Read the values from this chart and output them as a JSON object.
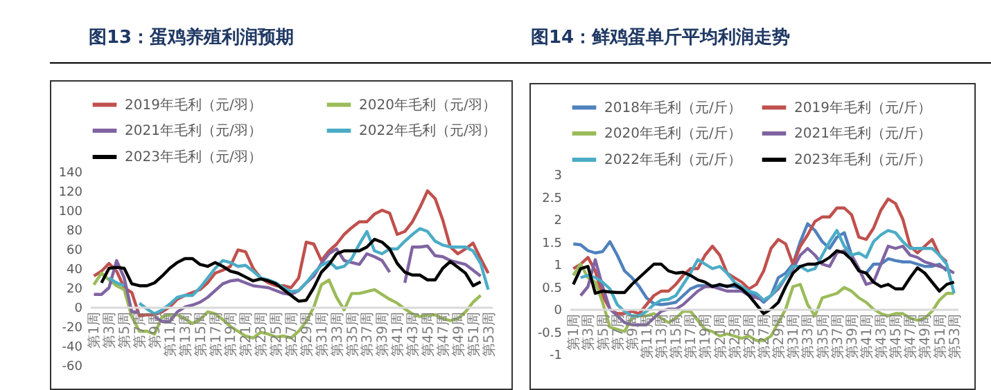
{
  "chart_data": [
    {
      "type": "line",
      "title": "图13：蛋鸡养殖利润预期",
      "legend": "top",
      "categories": [
        "第1周",
        null,
        "第3周",
        null,
        "第5周",
        null,
        "第7周",
        null,
        "第9周",
        null,
        "第11周",
        null,
        "第13周",
        null,
        "第15周",
        null,
        "第17周",
        null,
        "第19周",
        null,
        "第21周",
        null,
        "第23周",
        null,
        "第25周",
        null,
        "第27周",
        null,
        "第29周",
        null,
        "第31周",
        null,
        "第33周",
        null,
        "第35周",
        null,
        "第37周",
        null,
        "第39周",
        null,
        "第41周",
        null,
        "第43周",
        null,
        "第45周",
        null,
        "第47周",
        null,
        "第49周",
        null,
        "第51周",
        null,
        "第53周"
      ],
      "ylim": [
        -60,
        140
      ],
      "yticks": [
        -60,
        -40,
        -20,
        0,
        20,
        40,
        60,
        80,
        100,
        120,
        140
      ],
      "series": [
        {
          "name": "2019年毛利（元/羽）",
          "color": "#c0504d",
          "values": [
            32,
            37,
            45,
            37,
            20,
            15,
            -9,
            -8,
            -8,
            -5,
            0,
            8,
            12,
            15,
            18,
            25,
            35,
            38,
            42,
            59,
            57,
            40,
            30,
            25,
            22,
            22,
            20,
            30,
            67,
            65,
            48,
            58,
            65,
            75,
            82,
            88,
            88,
            96,
            100,
            97,
            75,
            78,
            88,
            103,
            120,
            112,
            90,
            62,
            55,
            60,
            66,
            50,
            35
          ]
        },
        {
          "name": "2020年毛利（元/羽）",
          "color": "#9bbb59",
          "values": [
            23,
            35,
            28,
            22,
            18,
            -10,
            -25,
            -25,
            -28,
            -10,
            -8,
            -8,
            -12,
            -17,
            -13,
            -5,
            -7,
            -13,
            -20,
            -25,
            -30,
            -32,
            -26,
            -28,
            -31,
            -30,
            -32,
            -25,
            -15,
            0,
            23,
            28,
            10,
            -3,
            14,
            14,
            16,
            18,
            13,
            8,
            4,
            -2,
            -7,
            -10,
            -8,
            -8,
            -12,
            -14,
            -12,
            -5,
            5,
            12,
            null
          ]
        },
        {
          "name": "2021年毛利（元/羽）",
          "color": "#8064a2",
          "values": [
            13,
            13,
            20,
            48,
            30,
            -5,
            -5,
            null,
            -10,
            -15,
            -15,
            -5,
            0,
            2,
            5,
            10,
            17,
            24,
            27,
            28,
            25,
            22,
            21,
            20,
            17,
            14,
            13,
            17,
            25,
            32,
            45,
            55,
            60,
            48,
            46,
            44,
            55,
            52,
            48,
            36,
            null,
            25,
            62,
            62,
            63,
            53,
            52,
            48,
            46,
            44,
            38,
            32,
            null
          ]
        },
        {
          "name": "2022年毛利（元/羽）",
          "color": "#4bacc6",
          "values": [
            null,
            null,
            30,
            25,
            22,
            null,
            4,
            -2,
            -7,
            -3,
            3,
            10,
            12,
            12,
            20,
            30,
            40,
            48,
            46,
            42,
            43,
            37,
            30,
            28,
            25,
            20,
            16,
            17,
            25,
            35,
            43,
            47,
            40,
            42,
            50,
            65,
            78,
            58,
            55,
            60,
            60,
            68,
            75,
            81,
            78,
            68,
            64,
            62,
            62,
            62,
            58,
            45,
            18
          ]
        },
        {
          "name": "2023年毛利（元/羽）",
          "color": "#000000",
          "values": [
            null,
            25,
            40,
            41,
            40,
            24,
            22,
            22,
            25,
            32,
            40,
            46,
            50,
            50,
            44,
            42,
            46,
            42,
            37,
            35,
            31,
            27,
            29,
            27,
            24,
            18,
            12,
            6,
            7,
            20,
            36,
            44,
            55,
            58,
            58,
            58,
            62,
            70,
            67,
            60,
            45,
            36,
            33,
            33,
            28,
            28,
            40,
            47,
            41,
            35,
            22,
            26,
            null
          ]
        }
      ]
    },
    {
      "type": "line",
      "title": "图14：鲜鸡蛋单斤平均利润走势",
      "legend": "top",
      "categories": [
        "第1周",
        null,
        "第3周",
        null,
        "第5周",
        null,
        "第7周",
        null,
        "第9周",
        null,
        "第11周",
        null,
        "第13周",
        null,
        "第15周",
        null,
        "第17周",
        null,
        "第19周",
        null,
        "第21周",
        null,
        "第23周",
        null,
        "第25周",
        null,
        "第27周",
        null,
        "第29周",
        null,
        "第31周",
        null,
        "第33周",
        null,
        "第35周",
        null,
        "第37周",
        null,
        "第39周",
        null,
        "第41周",
        null,
        "第43周",
        null,
        "第45周",
        null,
        "第47周",
        null,
        "第49周",
        null,
        "第51周",
        null,
        "第53周"
      ],
      "ylim": [
        -1,
        3
      ],
      "yticks": [
        -1,
        -0.5,
        0,
        0.5,
        1,
        1.5,
        2,
        2.5,
        3
      ],
      "series": [
        {
          "name": "2018年毛利（元/斤）",
          "color": "#4f81bd",
          "values": [
            1.45,
            1.43,
            1.3,
            1.25,
            1.28,
            1.5,
            1.2,
            0.85,
            0.7,
            0.5,
            0.25,
            0.12,
            0.1,
            0.12,
            0.15,
            0.3,
            0.45,
            0.52,
            0.52,
            0.52,
            0.52,
            0.52,
            0.5,
            0.45,
            0.35,
            0.3,
            0.15,
            0.3,
            0.7,
            0.8,
            1.0,
            1.5,
            1.9,
            1.75,
            1.5,
            1.35,
            1.6,
            1.7,
            1.2,
            0.85,
            0.8,
            1.0,
            1.0,
            1.12,
            1.08,
            1.05,
            1.05,
            1.0,
            0.95,
            0.95,
            1.0,
            0.85,
            null
          ]
        },
        {
          "name": "2019年毛利（元/斤）",
          "color": "#c0504d",
          "values": [
            0.9,
            1.0,
            1.15,
            0.85,
            0.3,
            0,
            -0.1,
            -0.1,
            -0.05,
            -0.1,
            0.1,
            0.3,
            0.4,
            0.4,
            0.55,
            0.75,
            0.9,
            0.9,
            1.2,
            1.4,
            1.2,
            0.8,
            0.7,
            0.6,
            0.45,
            0.55,
            0.85,
            1.35,
            1.55,
            1.45,
            1.0,
            1.4,
            1.65,
            1.95,
            2.05,
            2.05,
            2.25,
            2.25,
            2.1,
            1.6,
            1.55,
            1.8,
            2.2,
            2.45,
            2.35,
            2.0,
            1.4,
            1.25,
            1.4,
            1.55,
            1.2,
            1.05,
            null
          ]
        },
        {
          "name": "2020年毛利（元/斤）",
          "color": "#9bbb59",
          "values": [
            0.75,
            1.0,
            0.7,
            0.6,
            0.15,
            -0.4,
            -0.45,
            -0.5,
            -0.2,
            -0.15,
            -0.15,
            -0.1,
            -0.2,
            -0.3,
            -0.2,
            -0.05,
            -0.05,
            -0.25,
            -0.45,
            -0.5,
            -0.6,
            -0.55,
            -0.6,
            -0.65,
            -0.6,
            -0.7,
            -0.7,
            -0.6,
            -0.3,
            0,
            0.5,
            0.55,
            0.1,
            -0.15,
            0.25,
            0.3,
            0.35,
            0.48,
            0.4,
            0.25,
            0.15,
            0,
            -0.1,
            -0.15,
            -0.1,
            -0.1,
            -0.2,
            -0.25,
            -0.2,
            -0.05,
            0.2,
            0.35,
            0.35
          ]
        },
        {
          "name": "2021年毛利（元/斤）",
          "color": "#8064a2",
          "values": [
            null,
            0.3,
            0.5,
            1.1,
            0.5,
            0,
            -0.15,
            -0.3,
            -0.35,
            -0.35,
            -0.35,
            -0.2,
            -0.05,
            0,
            0,
            0.1,
            0.25,
            0.4,
            0.5,
            0.5,
            0.45,
            0.4,
            0.4,
            0.4,
            0.3,
            0.25,
            0.2,
            0.3,
            0.45,
            0.7,
            0.9,
            1.2,
            1.35,
            1.2,
            1.0,
            0.95,
            1.25,
            1.3,
            1.2,
            0.9,
            0.55,
            0.6,
            1.0,
            1.4,
            1.35,
            1.4,
            1.2,
            1.15,
            1.05,
            1.0,
            0.95,
            0.9,
            0.8
          ]
        },
        {
          "name": "2022年毛利（元/斤）",
          "color": "#4bacc6",
          "values": [
            null,
            0.7,
            0.75,
            0.7,
            0.6,
            0.45,
            0.1,
            -0.05,
            -0.15,
            -0.15,
            -0.05,
            0.1,
            0.2,
            0.22,
            0.3,
            0.55,
            0.8,
            1.1,
            1.0,
            0.9,
            0.95,
            0.8,
            0.6,
            0.5,
            0.4,
            0.35,
            0.2,
            0.3,
            0.5,
            0.7,
            0.95,
            0.95,
            0.85,
            0.9,
            1.2,
            1.5,
            1.75,
            1.4,
            1.2,
            1.25,
            1.15,
            1.5,
            1.65,
            1.75,
            1.7,
            1.5,
            1.35,
            1.35,
            1.35,
            1.35,
            1.2,
            1.0,
            0.35
          ]
        },
        {
          "name": "2023年毛利（元/斤）",
          "color": "#000000",
          "values": [
            0.55,
            0.9,
            0.95,
            0.35,
            0.4,
            0.38,
            0.37,
            0.37,
            0.55,
            0.7,
            0.85,
            1.0,
            1.0,
            0.85,
            0.8,
            0.82,
            0.75,
            0.65,
            0.6,
            0.5,
            0.55,
            0.5,
            0.55,
            0.45,
            0.3,
            0.1,
            -0.1,
            0,
            0.15,
            0.5,
            0.8,
            0.95,
            1.0,
            1.0,
            1.05,
            1.15,
            1.3,
            1.25,
            1.1,
            0.85,
            0.8,
            0.6,
            0.5,
            0.55,
            0.45,
            0.45,
            0.7,
            0.92,
            0.8,
            0.6,
            0.4,
            0.55,
            0.6
          ]
        }
      ]
    }
  ]
}
